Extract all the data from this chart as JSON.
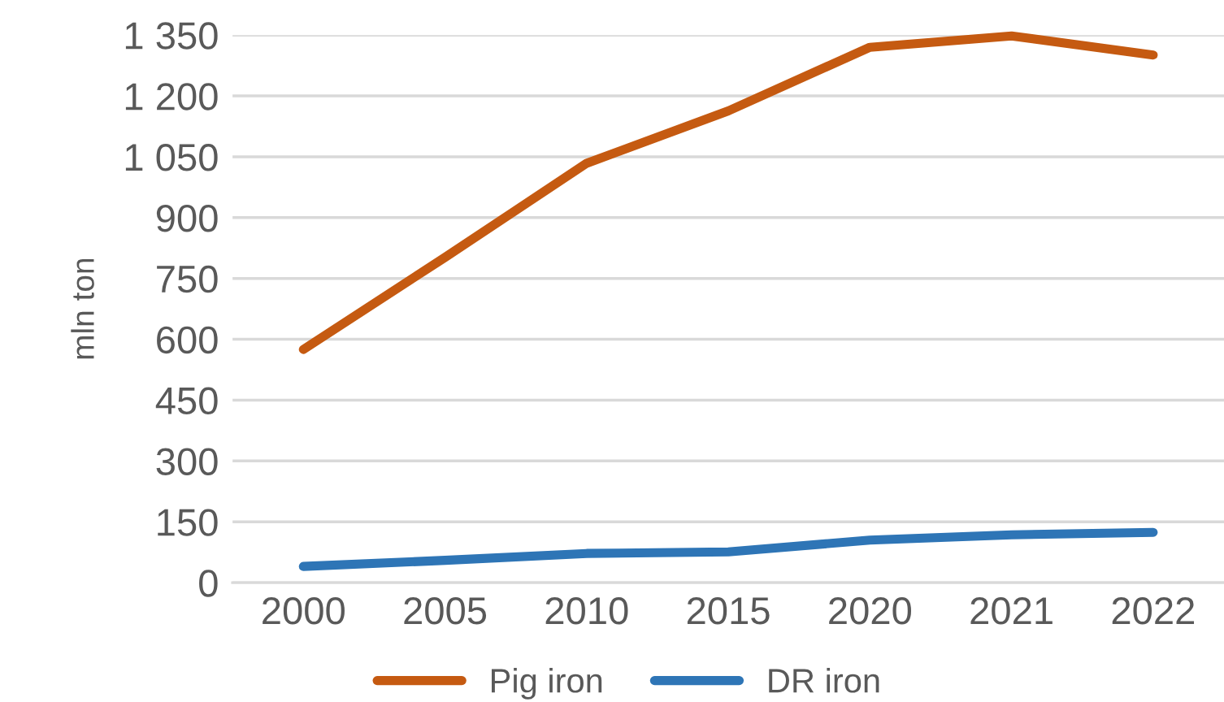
{
  "chart_data": {
    "type": "line",
    "ylabel": "mln ton",
    "categories": [
      "2000",
      "2005",
      "2010",
      "2015",
      "2020",
      "2021",
      "2022"
    ],
    "series": [
      {
        "name": "Pig iron",
        "color": "#c55a11",
        "values": [
          575,
          802,
          1034,
          1163,
          1320,
          1348,
          1301
        ]
      },
      {
        "name": "DR iron",
        "color": "#2e75b6",
        "values": [
          40,
          55,
          72,
          76,
          105,
          118,
          124
        ]
      }
    ],
    "ylim": [
      0,
      1350
    ],
    "yticks": [
      0,
      150,
      300,
      450,
      600,
      750,
      900,
      {
        "value": 1050,
        "label": "1 050"
      },
      {
        "value": 1200,
        "label": "1 200"
      },
      {
        "value": 1350,
        "label": "1 350"
      }
    ],
    "grid": "y",
    "legend": "bottom",
    "marker": "none",
    "line_style": "solid"
  }
}
